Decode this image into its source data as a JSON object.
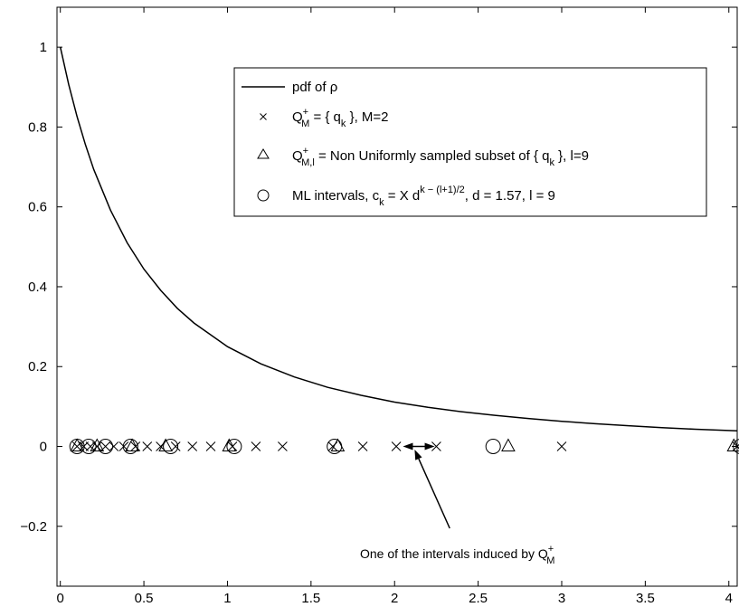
{
  "chart_data": {
    "type": "line",
    "title": "",
    "xlabel": "",
    "ylabel": "",
    "xlim": [
      -0.02,
      4.05
    ],
    "ylim": [
      -0.35,
      1.1
    ],
    "xticks": [
      0,
      0.5,
      1,
      1.5,
      2,
      2.5,
      3,
      3.5,
      4
    ],
    "xtick_labels": [
      "0",
      "0.5",
      "1",
      "1.5",
      "2",
      "2.5",
      "3",
      "3.5",
      "4"
    ],
    "yticks": [
      -0.2,
      0,
      0.2,
      0.4,
      0.6,
      0.8,
      1
    ],
    "ytick_labels": [
      "−0.2",
      "0",
      "0.2",
      "0.4",
      "0.6",
      "0.8",
      "1"
    ],
    "grid": false,
    "legend_position": "top-right",
    "series": [
      {
        "name": "pdf of ρ",
        "kind": "line",
        "x": [
          0,
          0.05,
          0.1,
          0.15,
          0.2,
          0.3,
          0.4,
          0.5,
          0.6,
          0.7,
          0.8,
          1.0,
          1.2,
          1.4,
          1.6,
          1.8,
          2.0,
          2.2,
          2.4,
          2.6,
          2.8,
          3.0,
          3.2,
          3.4,
          3.6,
          3.8,
          4.05
        ],
        "y": [
          1.0,
          0.907,
          0.826,
          0.756,
          0.694,
          0.592,
          0.51,
          0.444,
          0.391,
          0.346,
          0.309,
          0.25,
          0.207,
          0.174,
          0.148,
          0.128,
          0.111,
          0.098,
          0.087,
          0.078,
          0.07,
          0.063,
          0.057,
          0.052,
          0.047,
          0.043,
          0.039
        ]
      },
      {
        "name_parts": [
          "Q",
          "+",
          "M",
          " = { q",
          "k",
          " },  M=2"
        ],
        "kind": "marker-x",
        "x": [
          0.1,
          0.14,
          0.18,
          0.22,
          0.27,
          0.32,
          0.38,
          0.45,
          0.52,
          0.6,
          0.69,
          0.79,
          0.9,
          1.03,
          1.17,
          1.33,
          1.63,
          1.81,
          2.01,
          2.25,
          3.0,
          4.05
        ],
        "y": [
          0,
          0,
          0,
          0,
          0,
          0,
          0,
          0,
          0,
          0,
          0,
          0,
          0,
          0,
          0,
          0,
          0,
          0,
          0,
          0,
          0,
          0
        ]
      },
      {
        "name_parts": [
          "Q",
          "+",
          "M,l",
          " = Non Uniformly sampled subset of { q",
          "k",
          " }, l=9"
        ],
        "kind": "marker-triangle",
        "x": [
          0.1,
          0.22,
          0.43,
          0.63,
          1.01,
          1.66,
          2.68,
          4.03
        ],
        "y": [
          0,
          0,
          0,
          0,
          0,
          0,
          0,
          0
        ]
      },
      {
        "name_parts": [
          "ML intervals, c",
          "k",
          " = X d",
          "k − (l+1)/2",
          ", d = 1.57, l = 9"
        ],
        "kind": "marker-circle",
        "x": [
          0.1,
          0.17,
          0.27,
          0.42,
          0.66,
          1.04,
          1.64,
          2.59,
          4.07
        ],
        "y": [
          0,
          0,
          0,
          0,
          0,
          0,
          0,
          0,
          0
        ]
      }
    ],
    "annotations": [
      {
        "text_parts": [
          "One of the intervals induced by Q",
          "+",
          "M"
        ],
        "interval": [
          2.05,
          2.24
        ],
        "pointer_from": [
          2.33,
          -0.205
        ],
        "pointer_to": [
          2.12,
          -0.008
        ]
      }
    ]
  }
}
